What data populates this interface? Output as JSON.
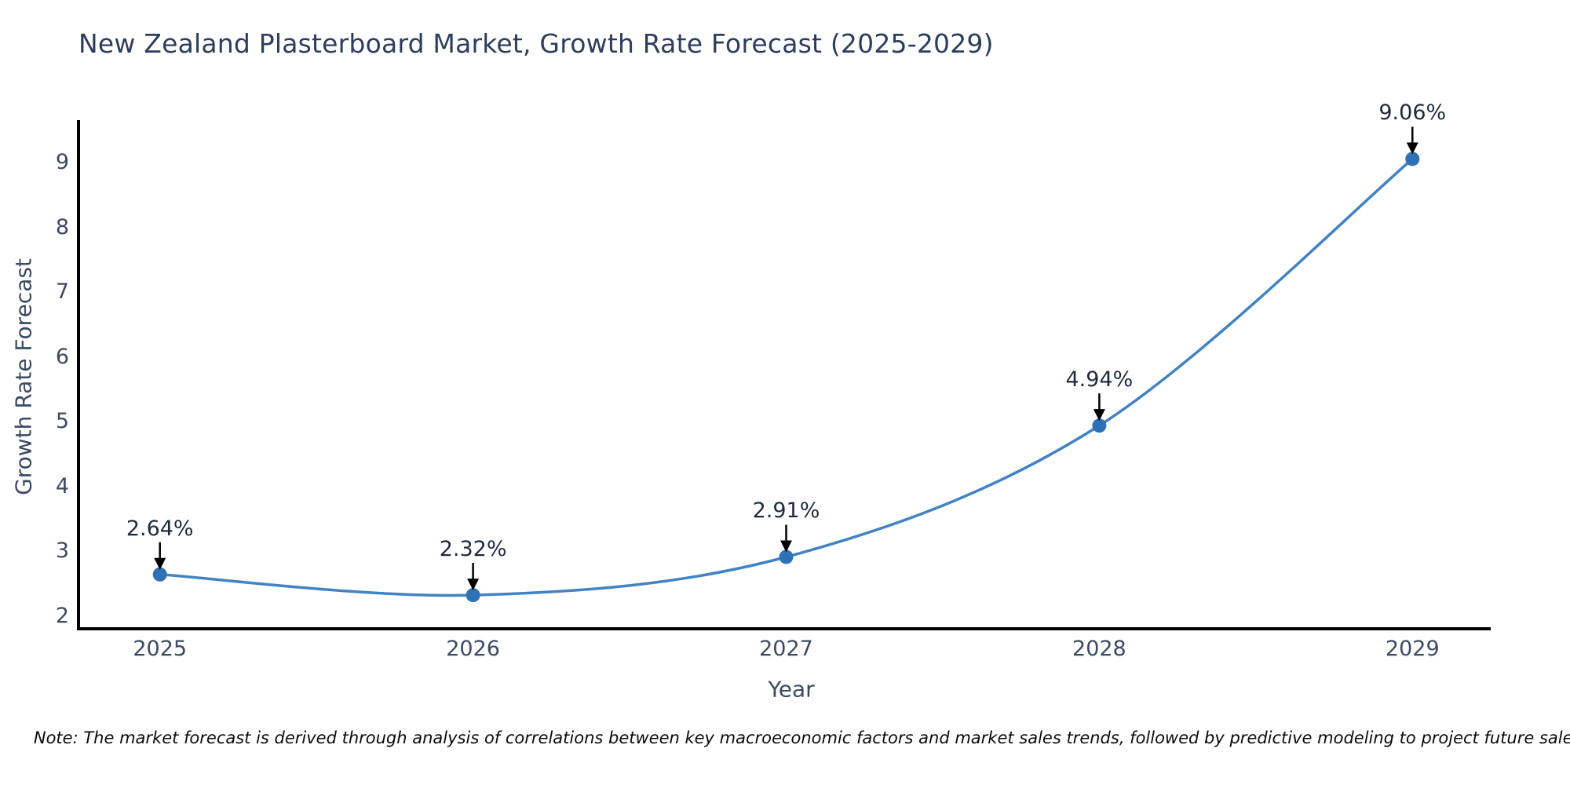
{
  "note": "Note: The market forecast is derived through analysis of correlations between key macroeconomic factors and market sales trends, followed by predictive modeling to project future sales.",
  "chart_data": {
    "type": "line",
    "title": "New Zealand Plasterboard Market, Growth Rate Forecast (2025-2029)",
    "xlabel": "Year",
    "ylabel": "Growth Rate Forecast",
    "x": [
      2025,
      2026,
      2027,
      2028,
      2029
    ],
    "values": [
      2.64,
      2.32,
      2.91,
      4.94,
      9.06
    ],
    "point_labels": [
      "2.64%",
      "2.32%",
      "2.91%",
      "4.94%",
      "9.06%"
    ],
    "xticks": [
      "2025",
      "2026",
      "2027",
      "2028",
      "2029"
    ],
    "xtick_values": [
      2025,
      2026,
      2027,
      2028,
      2029
    ],
    "yticks": [
      "2",
      "3",
      "4",
      "5",
      "6",
      "7",
      "8",
      "9"
    ],
    "ytick_values": [
      2,
      3,
      4,
      5,
      6,
      7,
      8,
      9
    ],
    "xlim": [
      2024.74,
      2029.25
    ],
    "ylim": [
      1.8,
      9.66
    ],
    "grid": false,
    "legend": false,
    "line_smooth": true,
    "annotations_have_arrows": true
  },
  "colors": {
    "background": "#ffffff",
    "line": "#4183c4",
    "marker": "#2e72b5",
    "spine": "#000000",
    "arrow": "#000000",
    "title_text": "#2c3e5d",
    "axis_text": "#3b4a63",
    "annotation_text": "#1f2a3d",
    "note_text": "#0b0b0b"
  }
}
